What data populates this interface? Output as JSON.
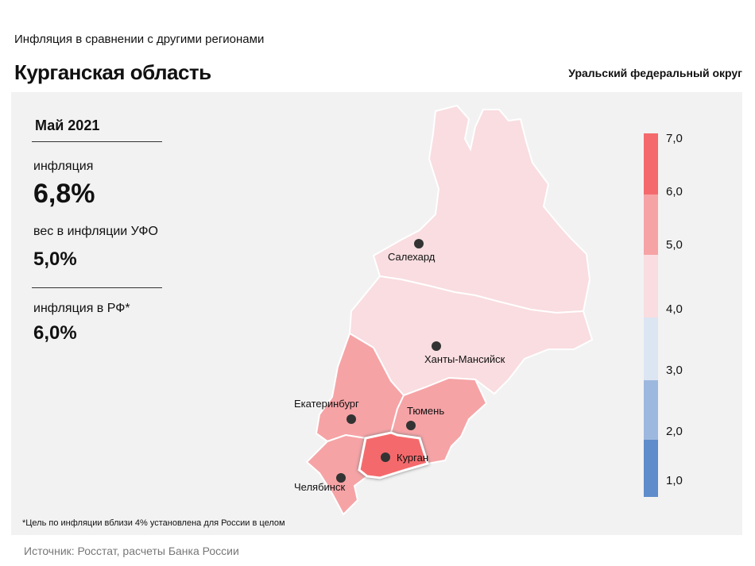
{
  "header": {
    "subtitle": "Инфляция  в сравнении  с другими  регионами",
    "title": "Курганская область",
    "district": "Уральский федеральный округ"
  },
  "stats": {
    "period": "Май 2021",
    "inflation_label": "инфляция",
    "inflation_value": "6,8%",
    "weight_label": "вес в инфляции  УФО",
    "weight_value": "5,0%",
    "rf_label": "инфляция  в РФ*",
    "rf_value": "6,0%"
  },
  "map": {
    "cities": {
      "salekhard": "Салехард",
      "khanty": "Ханты-Мансийск",
      "ekaterinburg": "Екатеринбург",
      "tyumen": "Тюмень",
      "kurgan": "Курган",
      "chelyabinsk": "Челябинск"
    },
    "colors": {
      "yamal": "#f9dde0",
      "khmao": "#f9dde0",
      "sverdlovsk": "#f6a3a6",
      "tyumen": "#f6a3a6",
      "chelyabinsk": "#f6a3a6",
      "kurgan": "#f46a6c"
    }
  },
  "legend": {
    "ticks": [
      "7,0",
      "6,0",
      "5,0",
      "4,0",
      "3,0",
      "2,0",
      "1,0"
    ],
    "colors": [
      "#f46a6c",
      "#f6a3a6",
      "#f9dde0",
      "#dce5f2",
      "#9db8de",
      "#5f8ccb"
    ]
  },
  "footnote": "*Цель по инфляции вблизи 4% установлена для России в целом",
  "source": "Источник: Росстат, расчеты Банка России"
}
